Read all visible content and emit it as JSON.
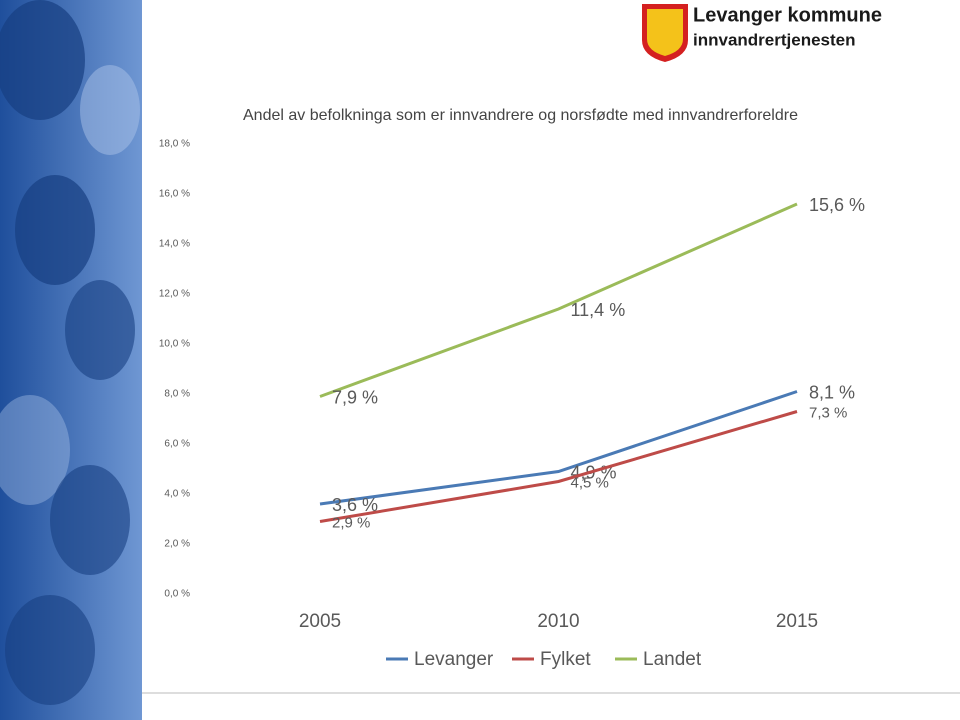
{
  "logo": {
    "title": "Levanger kommune",
    "subtitle": "innvandrertjenesten"
  },
  "chart_data": {
    "type": "line",
    "title": "Andel av befolkninga som er innvandrere og norsfødte med innvandrerforeldre",
    "categories": [
      "2005",
      "2010",
      "2015"
    ],
    "series": [
      {
        "name": "Levanger",
        "color": "#4a7ab5",
        "values": [
          3.6,
          4.9,
          8.1
        ],
        "value_labels": [
          "3,6 %",
          "4,9 %",
          "8,1 %"
        ]
      },
      {
        "name": "Fylket",
        "color": "#be4b48",
        "values": [
          2.9,
          4.5,
          7.3
        ],
        "value_labels": [
          "2,9 %",
          "4,5 %",
          "7,3 %"
        ]
      },
      {
        "name": "Landet",
        "color": "#9bbb59",
        "values": [
          7.9,
          11.4,
          15.6
        ],
        "value_labels": [
          "7,9 %",
          "11,4 %",
          "15,6 %"
        ]
      }
    ],
    "ylim": [
      0,
      18
    ],
    "yticks": [
      {
        "value": 0,
        "label": "0,0 %"
      },
      {
        "value": 2,
        "label": "2,0 %"
      },
      {
        "value": 4,
        "label": "4,0 %"
      },
      {
        "value": 6,
        "label": "6,0 %"
      },
      {
        "value": 8,
        "label": "8,0 %"
      },
      {
        "value": 10,
        "label": "10,0 %"
      },
      {
        "value": 12,
        "label": "12,0 %"
      },
      {
        "value": 14,
        "label": "14,0 %"
      },
      {
        "value": 16,
        "label": "16,0 %"
      },
      {
        "value": 18,
        "label": "18,0 %"
      }
    ],
    "legend": "bottom"
  }
}
